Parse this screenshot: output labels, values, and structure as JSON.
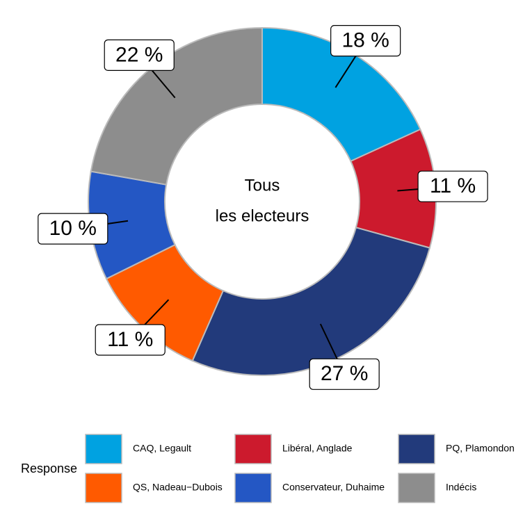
{
  "chart_data": {
    "type": "pie",
    "center_label": [
      "Tous",
      "les electeurs"
    ],
    "legend_title": "Response",
    "categories": [
      "CAQ, Legault",
      "Libéral, Anglade",
      "PQ, Plamondon",
      "QS, Nadeau−Dubois",
      "Conservateur, Duhaime",
      "Indécis"
    ],
    "values": [
      18,
      11,
      27,
      11,
      10,
      22
    ],
    "value_labels": [
      "18 %",
      "11 %",
      "27 %",
      "11 %",
      "10 %",
      "22 %"
    ],
    "colors": [
      "#00a2e1",
      "#cc1a2d",
      "#223a7b",
      "#ff5a00",
      "#2457c4",
      "#8d8d8d"
    ]
  }
}
